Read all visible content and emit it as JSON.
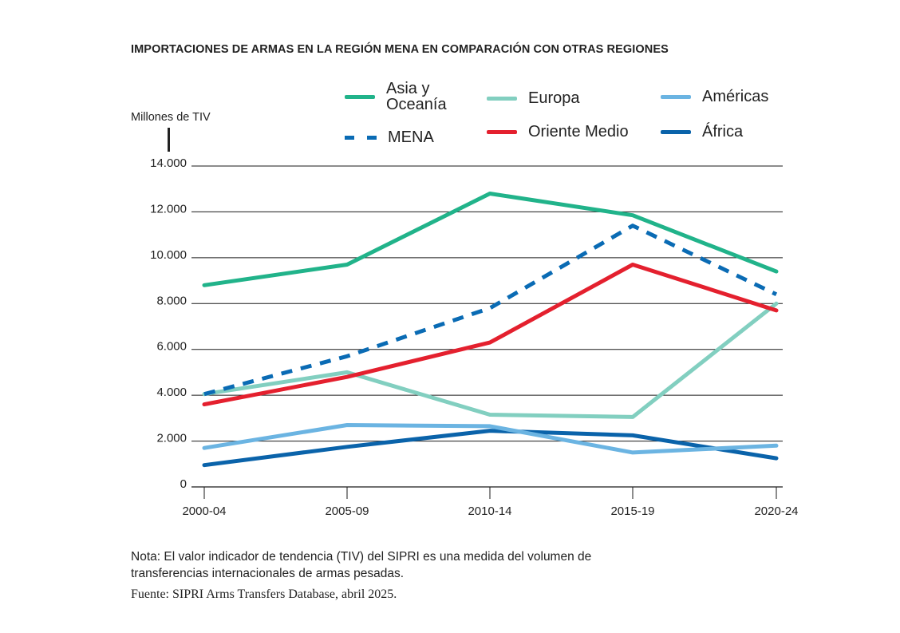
{
  "chart_data": {
    "type": "line",
    "title": "IMPORTACIONES DE ARMAS EN LA REGIÓN MENA EN COMPARACIÓN CON OTRAS REGIONES",
    "ylabel": "Millones de TIV",
    "xlabel": "",
    "categories": [
      "2000-04",
      "2005-09",
      "2010-14",
      "2015-19",
      "2020-24"
    ],
    "ylim": [
      0,
      14000
    ],
    "yticks": [
      0,
      2000,
      4000,
      6000,
      8000,
      10000,
      12000,
      14000
    ],
    "ytick_labels": [
      "0",
      "2.000",
      "4.000",
      "6.000",
      "8.000",
      "10.000",
      "12.000",
      "14.000"
    ],
    "grid": true,
    "legend_position": "top",
    "series": [
      {
        "key": "asia",
        "name": "Asia y Oceanía",
        "name_lines": [
          "Asia y",
          "Oceanía"
        ],
        "color": "#21b38a",
        "style": "solid",
        "values": [
          8800,
          9700,
          12800,
          11850,
          9400
        ]
      },
      {
        "key": "mena",
        "name": "MENA",
        "name_lines": [
          "MENA"
        ],
        "color": "#0a6bb4",
        "style": "dashed",
        "values": [
          4050,
          5700,
          7800,
          11400,
          8400
        ]
      },
      {
        "key": "europa",
        "name": "Europa",
        "name_lines": [
          "Europa"
        ],
        "color": "#82cfc0",
        "style": "solid",
        "values": [
          4050,
          5000,
          3150,
          3050,
          8000
        ]
      },
      {
        "key": "oriente",
        "name": "Oriente Medio",
        "name_lines": [
          "Oriente Medio"
        ],
        "color": "#e4202e",
        "style": "solid",
        "values": [
          3600,
          4800,
          6300,
          9700,
          7700
        ]
      },
      {
        "key": "americas",
        "name": "Américas",
        "name_lines": [
          "Américas"
        ],
        "color": "#6bb4e2",
        "style": "solid",
        "values": [
          1700,
          2700,
          2650,
          1500,
          1800
        ]
      },
      {
        "key": "africa",
        "name": "África",
        "name_lines": [
          "África"
        ],
        "color": "#0a63aa",
        "style": "solid",
        "values": [
          950,
          1750,
          2450,
          2250,
          1250
        ]
      }
    ]
  },
  "notes": {
    "nota": "Nota: El valor indicador de tendencia (TIV) del SIPRI es una medida del volumen de transferencias internacionales de armas pesadas.",
    "fuente": "Fuente: SIPRI Arms Transfers Database, abril 2025."
  }
}
